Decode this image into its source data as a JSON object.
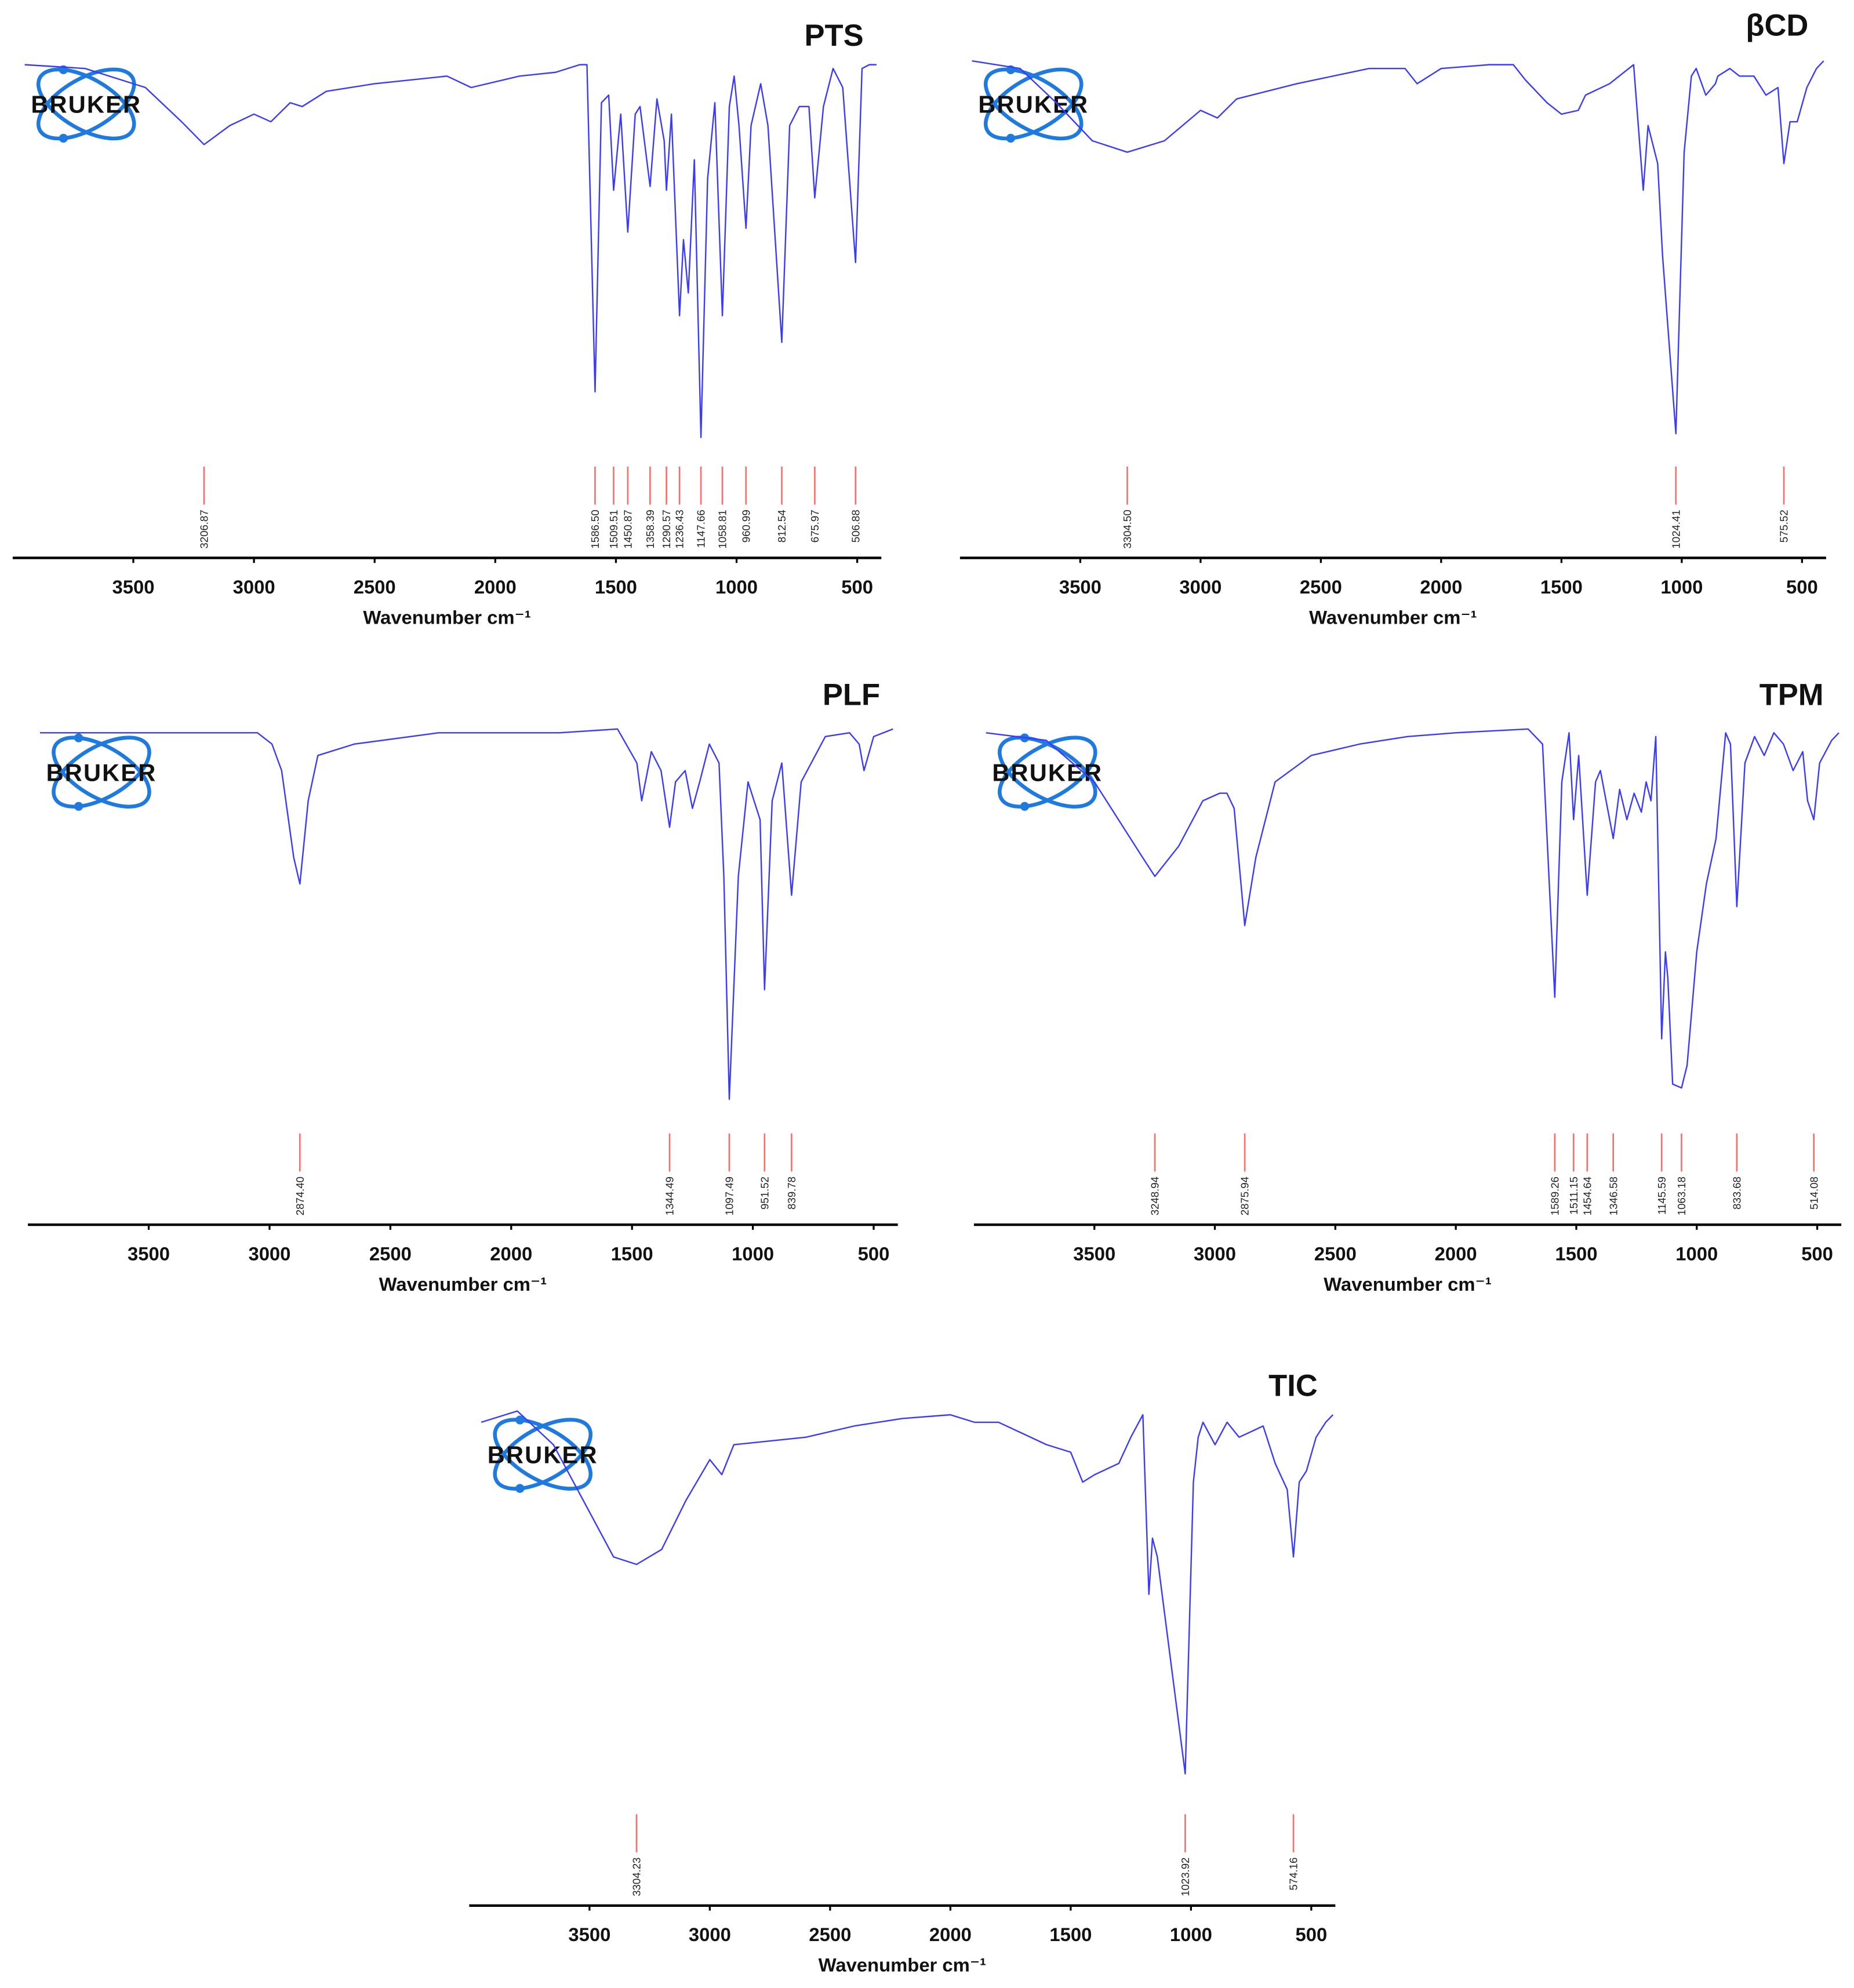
{
  "chart_data": [
    {
      "type": "line",
      "title": "PTS",
      "logo_text": "BRUKER",
      "xlabel": "Wavenumber cm⁻¹",
      "color": "#3a3aff",
      "peak_color": "#ff6b6b",
      "xlim": [
        4000,
        400
      ],
      "xticks": [
        3500,
        3000,
        2500,
        2000,
        1500,
        1000,
        500
      ],
      "ylim": [
        0,
        100
      ],
      "x": [
        3950,
        3700,
        3450,
        3300,
        3206.87,
        3100,
        3000,
        2930,
        2850,
        2800,
        2700,
        2500,
        2200,
        2100,
        1900,
        1750,
        1650,
        1620,
        1586.5,
        1560,
        1530,
        1509.51,
        1480,
        1450.87,
        1420,
        1400,
        1358.39,
        1330,
        1300,
        1290.57,
        1270,
        1236.43,
        1220,
        1200,
        1175,
        1147.66,
        1120,
        1090,
        1058.81,
        1030,
        1010,
        990,
        960.99,
        940,
        900,
        870,
        812.54,
        780,
        740,
        700,
        675.97,
        640,
        600,
        560,
        506.88,
        480,
        450,
        420
      ],
      "values": [
        98,
        97,
        92,
        83,
        77,
        82,
        85,
        83,
        88,
        87,
        91,
        93,
        95,
        92,
        95,
        96,
        98,
        98,
        12,
        88,
        90,
        65,
        85,
        54,
        85,
        87,
        66,
        89,
        78,
        65,
        85,
        32,
        52,
        38,
        73,
        0,
        68,
        88,
        32,
        87,
        95,
        82,
        55,
        82,
        93,
        82,
        25,
        82,
        87,
        87,
        63,
        87,
        97,
        92,
        46,
        97,
        98,
        98
      ],
      "peaks": [
        3206.87,
        {
          "value": 1586.5,
          "label": "1586.50"
        },
        1509.51,
        1450.87,
        1358.39,
        1290.57,
        1236.43,
        1147.66,
        1058.81,
        960.99,
        812.54,
        675.97,
        506.88
      ]
    },
    {
      "type": "line",
      "title": "βCD",
      "logo_text": "BRUKER",
      "xlabel": "Wavenumber cm⁻¹",
      "color": "#3a3aff",
      "peak_color": "#ff6b6b",
      "xlim": [
        4000,
        400
      ],
      "xticks": [
        3500,
        3000,
        2500,
        2000,
        1500,
        1000,
        500
      ],
      "ylim": [
        0,
        100
      ],
      "x": [
        3950,
        3750,
        3600,
        3450,
        3304.5,
        3150,
        3000,
        2930,
        2850,
        2600,
        2300,
        2150,
        2100,
        2000,
        1800,
        1700,
        1650,
        1560,
        1500,
        1430,
        1400,
        1300,
        1200,
        1160,
        1140,
        1100,
        1080,
        1024.41,
        990,
        960,
        940,
        900,
        860,
        850,
        800,
        760,
        700,
        650,
        600,
        575.52,
        550,
        520,
        480,
        440,
        410
      ],
      "values": [
        99,
        97,
        88,
        78,
        75,
        78,
        86,
        84,
        89,
        93,
        97,
        97,
        93,
        97,
        98,
        98,
        94,
        88,
        85,
        86,
        90,
        93,
        98,
        65,
        82,
        72,
        48,
        1,
        75,
        95,
        97,
        90,
        93,
        95,
        97,
        95,
        95,
        90,
        92,
        72,
        83,
        83,
        92,
        97,
        99
      ],
      "peaks": [
        {
          "value": 3304.5,
          "label": "3304.50"
        },
        1024.41,
        575.52
      ]
    },
    {
      "type": "line",
      "title": "PLF",
      "logo_text": "BRUKER",
      "xlabel": "Wavenumber cm⁻¹",
      "color": "#3a3aff",
      "peak_color": "#ff6b6b",
      "xlim": [
        4000,
        400
      ],
      "xticks": [
        3500,
        3000,
        2500,
        2000,
        1500,
        1000,
        500
      ],
      "ylim": [
        0,
        100
      ],
      "x": [
        3950,
        3400,
        3050,
        2990,
        2950,
        2900,
        2874.4,
        2840,
        2800,
        2650,
        2300,
        2000,
        1800,
        1560,
        1480,
        1460,
        1420,
        1380,
        1344.49,
        1320,
        1280,
        1250,
        1220,
        1180,
        1140,
        1120,
        1097.49,
        1060,
        1020,
        970,
        951.52,
        920,
        880,
        839.78,
        800,
        700,
        600,
        560,
        540,
        500,
        420
      ],
      "values": [
        98,
        98,
        98,
        95,
        88,
        65,
        58,
        80,
        92,
        95,
        98,
        98,
        98,
        99,
        90,
        80,
        93,
        88,
        73,
        85,
        88,
        78,
        85,
        95,
        90,
        60,
        1,
        60,
        85,
        75,
        30,
        80,
        90,
        55,
        85,
        97,
        98,
        95,
        88,
        97,
        99
      ],
      "peaks": [
        {
          "value": 2874.4,
          "label": "2874.40"
        },
        1344.49,
        1097.49,
        951.52,
        839.78
      ]
    },
    {
      "type": "line",
      "title": "TPM",
      "logo_text": "BRUKER",
      "xlabel": "Wavenumber cm⁻¹",
      "color": "#3a3aff",
      "peak_color": "#ff6b6b",
      "xlim": [
        4000,
        400
      ],
      "xticks": [
        3500,
        3000,
        2500,
        2000,
        1500,
        1000,
        500
      ],
      "ylim": [
        0,
        100
      ],
      "x": [
        3950,
        3700,
        3500,
        3400,
        3300,
        3248.94,
        3150,
        3050,
        2980,
        2950,
        2920,
        2875.94,
        2830,
        2750,
        2600,
        2400,
        2200,
        2000,
        1700,
        1640,
        1589.26,
        1560,
        1530,
        1511.15,
        1490,
        1454.64,
        1420,
        1400,
        1346.58,
        1320,
        1290,
        1260,
        1230,
        1210,
        1190,
        1170,
        1145.59,
        1130,
        1120,
        1100,
        1063.18,
        1040,
        1000,
        960,
        920,
        880,
        860,
        833.68,
        800,
        760,
        720,
        680,
        640,
        600,
        560,
        540,
        514.08,
        490,
        440,
        410
      ],
      "values": [
        98,
        96,
        85,
        75,
        65,
        60,
        68,
        80,
        82,
        82,
        78,
        47,
        65,
        85,
        92,
        95,
        97,
        98,
        99,
        95,
        28,
        85,
        98,
        75,
        92,
        55,
        85,
        88,
        70,
        83,
        75,
        82,
        77,
        85,
        80,
        97,
        17,
        40,
        33,
        5,
        4,
        10,
        40,
        58,
        70,
        98,
        95,
        52,
        90,
        97,
        92,
        98,
        95,
        88,
        93,
        80,
        75,
        90,
        96,
        98
      ],
      "peaks": [
        3248.94,
        2875.94,
        1589.26,
        1511.15,
        1454.64,
        1346.58,
        1145.59,
        1063.18,
        833.68,
        514.08
      ]
    },
    {
      "type": "line",
      "title": "TIC",
      "logo_text": "BRUKER",
      "xlabel": "Wavenumber cm⁻¹",
      "color": "#3a3aff",
      "peak_color": "#ff6b6b",
      "xlim": [
        4000,
        400
      ],
      "xticks": [
        3500,
        3000,
        2500,
        2000,
        1500,
        1000,
        500
      ],
      "ylim": [
        0,
        100
      ],
      "x": [
        3950,
        3800,
        3650,
        3500,
        3400,
        3304.23,
        3200,
        3100,
        3000,
        2950,
        2900,
        2600,
        2400,
        2200,
        2000,
        1900,
        1800,
        1700,
        1600,
        1500,
        1450,
        1400,
        1300,
        1250,
        1200,
        1175,
        1160,
        1140,
        1080,
        1023.92,
        990,
        970,
        950,
        900,
        850,
        800,
        700,
        650,
        600,
        574.16,
        550,
        520,
        480,
        440,
        410
      ],
      "values": [
        96,
        99,
        90,
        72,
        60,
        58,
        62,
        75,
        86,
        82,
        90,
        92,
        95,
        97,
        98,
        96,
        96,
        93,
        90,
        88,
        80,
        82,
        85,
        92,
        98,
        50,
        65,
        60,
        30,
        2,
        80,
        92,
        96,
        90,
        96,
        92,
        95,
        85,
        78,
        60,
        80,
        83,
        92,
        96,
        98
      ],
      "peaks": [
        3304.23,
        1023.92,
        574.16
      ]
    }
  ]
}
